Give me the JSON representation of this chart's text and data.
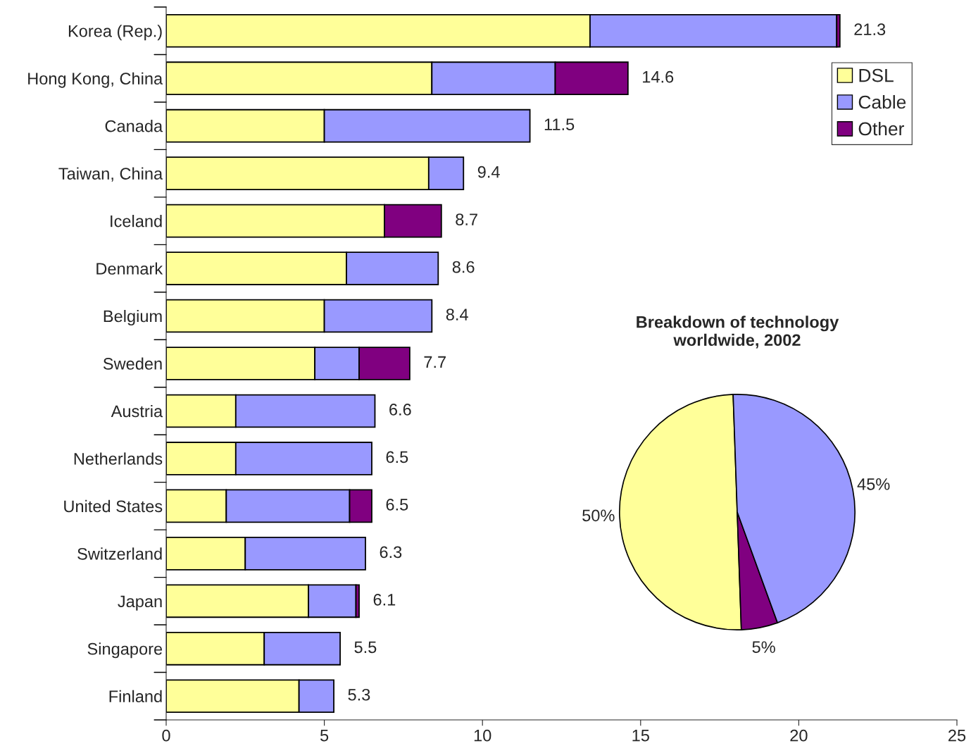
{
  "chart_data": [
    {
      "type": "bar",
      "orientation": "horizontal",
      "stacked": true,
      "categories": [
        "Korea (Rep.)",
        "Hong Kong, China",
        "Canada",
        "Taiwan, China",
        "Iceland",
        "Denmark",
        "Belgium",
        "Sweden",
        "Austria",
        "Netherlands",
        "United States",
        "Switzerland",
        "Japan",
        "Singapore",
        "Finland"
      ],
      "series": [
        {
          "name": "DSL",
          "color": "#ffff99",
          "values": [
            13.4,
            8.4,
            5.0,
            8.3,
            6.9,
            5.7,
            5.0,
            4.7,
            2.2,
            2.2,
            1.9,
            2.5,
            4.5,
            3.1,
            4.2
          ]
        },
        {
          "name": "Cable",
          "color": "#9999ff",
          "values": [
            7.8,
            3.9,
            6.5,
            1.1,
            null,
            2.9,
            3.4,
            1.4,
            4.4,
            4.3,
            3.9,
            3.8,
            1.5,
            2.4,
            1.1
          ]
        },
        {
          "name": "Other",
          "color": "#800080",
          "values": [
            0.1,
            2.3,
            null,
            null,
            1.8,
            null,
            null,
            1.6,
            null,
            null,
            0.7,
            null,
            0.1,
            null,
            null
          ]
        }
      ],
      "totals": [
        "21.3",
        "14.6",
        "11.5",
        "9.4",
        "8.7",
        "8.6",
        "8.4",
        "7.7",
        "6.6",
        "6.5",
        "6.5",
        "6.3",
        "6.1",
        "5.5",
        "5.3"
      ],
      "xlim": [
        0,
        25
      ],
      "xticks": [
        0,
        5,
        10,
        15,
        20,
        25
      ],
      "grid": false,
      "legend": "top right"
    },
    {
      "type": "pie",
      "title": "Breakdown of technology\nworldwide, 2002",
      "categories": [
        null,
        null,
        null
      ],
      "values": [
        50,
        5,
        45
      ],
      "colors": [
        "#ffff99",
        "#800080",
        "#9999ff"
      ],
      "value_labels": [
        "50%",
        "5%",
        "45%"
      ]
    }
  ]
}
